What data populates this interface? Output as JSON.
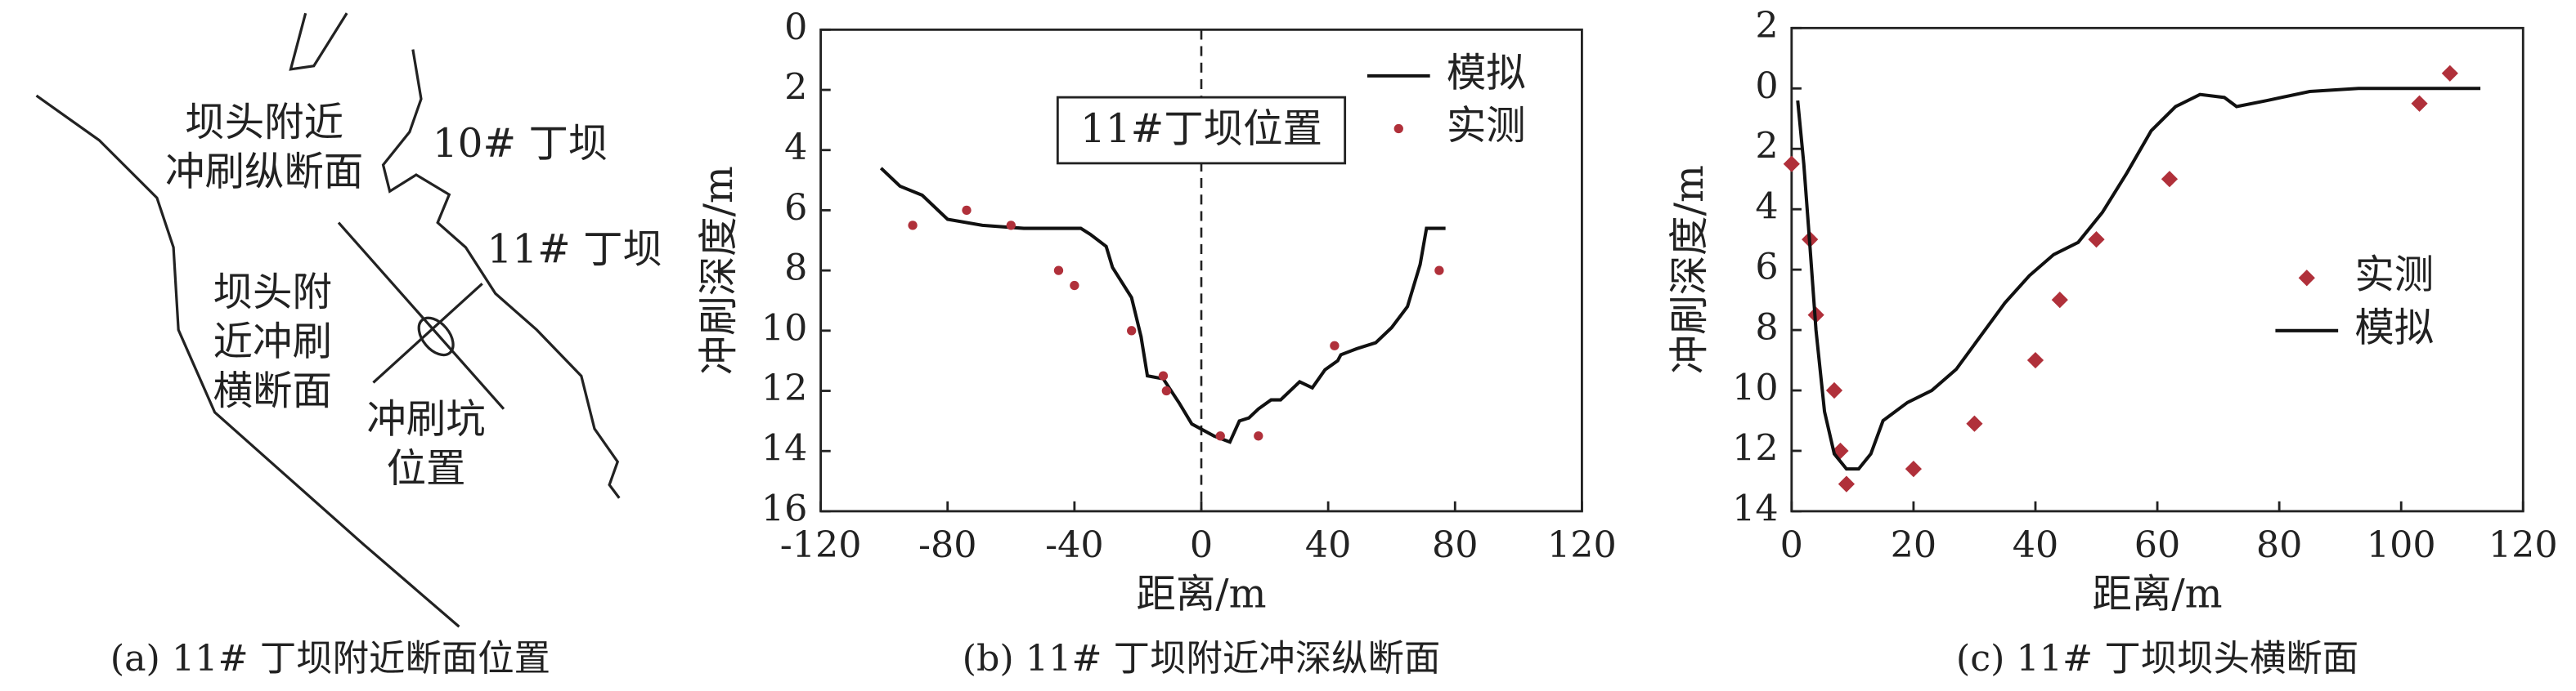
{
  "diagram": {
    "labels": [
      [
        "坝头附近",
        "冲刷纵断面"
      ],
      [
        "10# 丁坝"
      ],
      [
        "11# 丁坝"
      ],
      [
        "坝头附",
        "近冲刷",
        "横断面"
      ],
      [
        "冲刷坑",
        "位置"
      ]
    ],
    "caption": "(a) 11# 丁坝附近断面位置"
  },
  "chart_data": [
    {
      "type": "line",
      "caption": "(b) 11# 丁坝附近冲深纵断面",
      "xlabel": "距离/m",
      "ylabel": "冲刷深度/m",
      "xlim": [
        -120,
        120
      ],
      "xticks": [
        -120,
        -80,
        -40,
        0,
        40,
        80,
        120
      ],
      "ylim": [
        16,
        0
      ],
      "yticks": [
        0,
        2,
        4,
        6,
        8,
        10,
        12,
        14,
        16
      ],
      "legend": "upper right",
      "annotation": {
        "text": "11#丁坝位置",
        "x": 0
      },
      "series": [
        {
          "name": "模拟",
          "type": "line",
          "color": "#111111",
          "x": [
            -101,
            -95,
            -88,
            -80,
            -69,
            -56,
            -38,
            -35,
            -30,
            -28,
            -22,
            -19,
            -17,
            -12,
            -7,
            -3,
            4,
            9,
            12,
            15,
            18,
            22,
            25,
            31,
            35,
            39,
            43,
            44,
            49,
            55,
            60,
            65,
            69,
            71,
            77
          ],
          "values": [
            4.6,
            5.2,
            5.5,
            6.3,
            6.5,
            6.6,
            6.6,
            6.8,
            7.2,
            7.9,
            8.9,
            10.2,
            11.5,
            11.6,
            12.4,
            13.1,
            13.5,
            13.7,
            13.0,
            12.9,
            12.6,
            12.3,
            12.3,
            11.7,
            11.9,
            11.3,
            11.0,
            10.8,
            10.6,
            10.4,
            9.9,
            9.2,
            7.8,
            6.6,
            6.6
          ]
        },
        {
          "name": "实测",
          "type": "scatter",
          "marker": "circle",
          "color": "#b0303a",
          "x": [
            -91,
            -74,
            -60,
            -45,
            -40,
            -22,
            -12,
            -11,
            6,
            18,
            42,
            75
          ],
          "values": [
            6.5,
            6.0,
            6.5,
            8.0,
            8.5,
            10.0,
            11.5,
            12.0,
            13.5,
            13.5,
            10.5,
            8.0
          ]
        }
      ]
    },
    {
      "type": "line",
      "caption": "(c) 11# 丁坝坝头横断面",
      "xlabel": "距离/m",
      "ylabel": "冲刷深度/m",
      "xlim": [
        0,
        120
      ],
      "xticks": [
        0,
        20,
        40,
        60,
        80,
        100,
        120
      ],
      "ylim": [
        14,
        -2
      ],
      "yticks": [
        {
          "value": -2,
          "label": "2"
        },
        0,
        2,
        4,
        6,
        8,
        10,
        12,
        14
      ],
      "legend": "center right",
      "series": [
        {
          "name": "实测",
          "type": "scatter",
          "marker": "diamond",
          "color": "#b0303a",
          "x": [
            0,
            3,
            4,
            7,
            8,
            9,
            20,
            30,
            40,
            44,
            50,
            62,
            103,
            108
          ],
          "values": [
            2.5,
            5.0,
            7.5,
            10,
            12,
            13.1,
            12.6,
            11.1,
            9,
            7,
            5,
            3,
            0.5,
            -0.5
          ]
        },
        {
          "name": "模拟",
          "type": "line",
          "color": "#111111",
          "x": [
            1,
            2,
            3,
            4,
            5.4,
            7,
            9,
            11,
            13,
            15,
            19,
            23,
            27,
            31,
            35,
            39,
            43,
            47,
            51,
            55,
            59,
            63,
            67,
            71,
            73,
            78,
            85,
            93,
            113
          ],
          "values": [
            0.4,
            2.5,
            5.2,
            8,
            10.7,
            12.1,
            12.6,
            12.6,
            12.1,
            11,
            10.4,
            10,
            9.3,
            8.2,
            7.1,
            6.2,
            5.5,
            5.1,
            4.1,
            2.8,
            1.4,
            0.6,
            0.2,
            0.3,
            0.6,
            0.4,
            0.1,
            0,
            0
          ]
        }
      ]
    }
  ]
}
